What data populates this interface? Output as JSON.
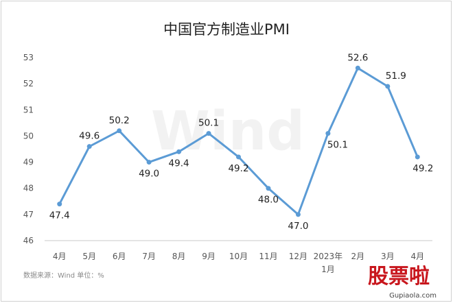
{
  "chart_data": {
    "type": "line",
    "title": "中国官方制造业PMI",
    "categories": [
      [
        "4月"
      ],
      [
        "5月"
      ],
      [
        "6月"
      ],
      [
        "7月"
      ],
      [
        "8月"
      ],
      [
        "9月"
      ],
      [
        "10月"
      ],
      [
        "11月"
      ],
      [
        "12月"
      ],
      [
        "2023年",
        "1月"
      ],
      [
        "2月"
      ],
      [
        "3月"
      ],
      [
        "4月"
      ]
    ],
    "series": [
      {
        "values": [
          47.4,
          49.6,
          50.2,
          49.0,
          49.4,
          50.1,
          49.2,
          48.0,
          47.0,
          50.1,
          52.6,
          51.9,
          49.2
        ]
      }
    ],
    "data_labels": [
      "47.4",
      "49.6",
      "50.2",
      "49.0",
      "49.4",
      "50.1",
      "49.2",
      "48.0",
      "47.0",
      "50.1",
      "52.6",
      "51.9",
      "49.2"
    ],
    "yticks": [
      46,
      47,
      48,
      49,
      50,
      51,
      52,
      53
    ],
    "ylim": [
      46,
      53
    ],
    "grid": false,
    "legend": "none",
    "line_color": "#5b9bd5",
    "source": "数据来源：Wind    单位：%",
    "watermark": "Wind"
  },
  "logo": {
    "text": "股票啦",
    "url": "Gupiaola.com"
  }
}
